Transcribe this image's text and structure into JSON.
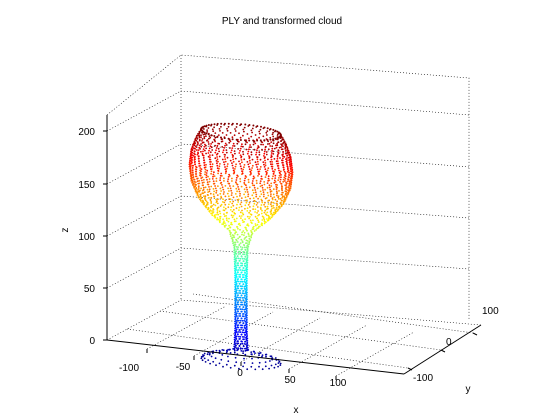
{
  "chart_data": {
    "type": "scatter",
    "subtype": "3d point cloud",
    "title": "PLY and transformed cloud",
    "xlabel": "x",
    "ylabel": "y",
    "zlabel": "z",
    "xlim": [
      -130,
      140
    ],
    "ylim": [
      -120,
      120
    ],
    "zlim": [
      0,
      220
    ],
    "xticks": [
      "-100",
      "-50",
      "0",
      "50",
      "100"
    ],
    "yticks": [
      "-100",
      "0",
      "100"
    ],
    "zticks": [
      "0",
      "50",
      "100",
      "150",
      "200"
    ],
    "grid": true,
    "colormap": "jet",
    "colormap_colors": [
      "#00008f",
      "#0000ff",
      "#0080ff",
      "#00ffff",
      "#80ff80",
      "#ffff00",
      "#ff8000",
      "#ff0000",
      "#800000"
    ],
    "profile": [
      {
        "z": 1,
        "r": 40
      },
      {
        "z": 4,
        "r": 38
      },
      {
        "z": 8,
        "r": 20
      },
      {
        "z": 12,
        "r": 7
      },
      {
        "z": 30,
        "r": 6
      },
      {
        "z": 80,
        "r": 6
      },
      {
        "z": 110,
        "r": 7
      },
      {
        "z": 125,
        "r": 12
      },
      {
        "z": 140,
        "r": 30
      },
      {
        "z": 155,
        "r": 43
      },
      {
        "z": 170,
        "r": 50
      },
      {
        "z": 185,
        "r": 52
      },
      {
        "z": 200,
        "r": 50
      },
      {
        "z": 212,
        "r": 45
      },
      {
        "z": 220,
        "r": 40
      }
    ]
  }
}
